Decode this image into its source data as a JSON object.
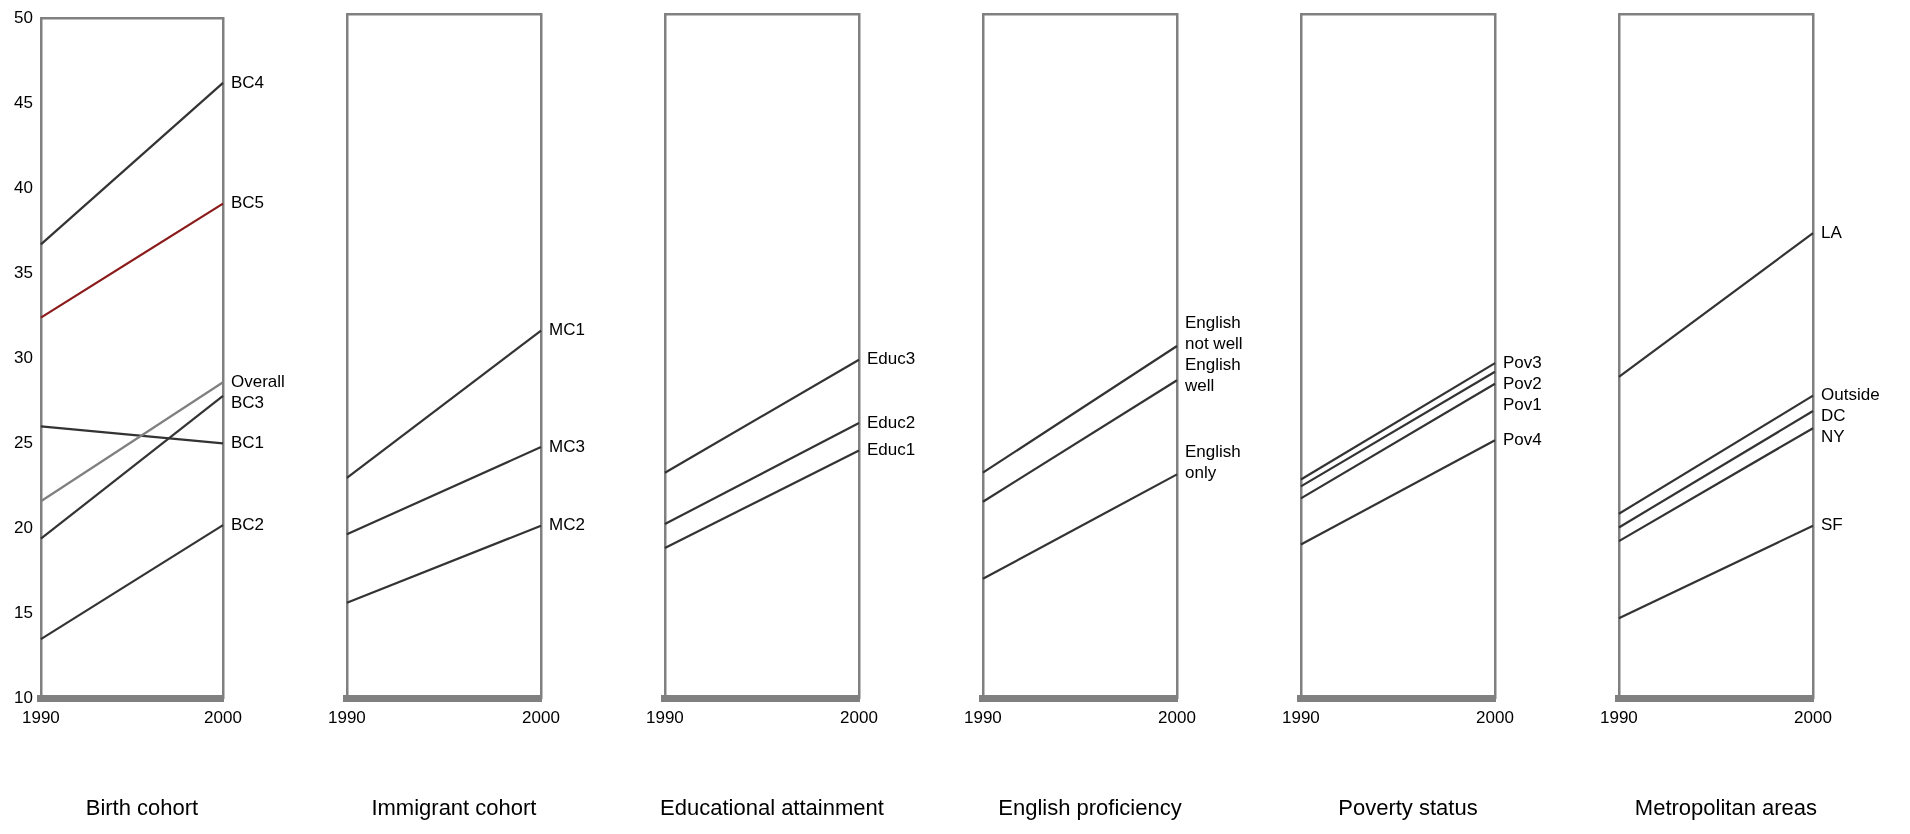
{
  "chart_data": [
    {
      "type": "line",
      "xlabel": "Birth cohort",
      "categories": [
        "1990",
        "2000"
      ],
      "ylim": [
        10,
        50
      ],
      "yticks": [
        10,
        15,
        20,
        25,
        30,
        35,
        40,
        45,
        50
      ],
      "marker": "none",
      "line_style": "solid",
      "series": [
        {
          "name": "BC4",
          "color": "#333333",
          "values": [
            36.7,
            46.2
          ]
        },
        {
          "name": "BC5",
          "color": "#8b1a1a",
          "values": [
            32.4,
            39.1
          ]
        },
        {
          "name": "Overall",
          "color": "#808080",
          "values": [
            21.6,
            28.6
          ]
        },
        {
          "name": "BC3",
          "color": "#333333",
          "values": [
            19.4,
            27.8
          ]
        },
        {
          "name": "BC1",
          "color": "#333333",
          "values": [
            26.0,
            25.0
          ]
        },
        {
          "name": "BC2",
          "color": "#333333",
          "values": [
            13.5,
            20.2
          ]
        }
      ]
    },
    {
      "type": "line",
      "xlabel": "Immigrant cohort",
      "categories": [
        "1990",
        "2000"
      ],
      "ylim": [
        10,
        50
      ],
      "tick_labels": "x",
      "marker": "none",
      "line_style": "solid",
      "series": [
        {
          "name": "MC1",
          "color": "#333333",
          "values": [
            22.9,
            31.5
          ]
        },
        {
          "name": "MC3",
          "color": "#333333",
          "values": [
            19.6,
            24.7
          ]
        },
        {
          "name": "MC2",
          "color": "#333333",
          "values": [
            15.6,
            20.1
          ]
        }
      ]
    },
    {
      "type": "line",
      "xlabel": "Educational attainment",
      "categories": [
        "1990",
        "2000"
      ],
      "ylim": [
        10,
        50
      ],
      "tick_labels": "x",
      "marker": "none",
      "line_style": "solid",
      "series": [
        {
          "name": "Educ3",
          "color": "#333333",
          "values": [
            23.2,
            29.8
          ]
        },
        {
          "name": "Educ2",
          "color": "#333333",
          "values": [
            20.2,
            26.1
          ]
        },
        {
          "name": "Educ1",
          "color": "#333333",
          "values": [
            18.8,
            24.5
          ]
        }
      ]
    },
    {
      "type": "line",
      "xlabel": "English proficiency",
      "categories": [
        "1990",
        "2000"
      ],
      "ylim": [
        10,
        50
      ],
      "tick_labels": "x",
      "marker": "none",
      "line_style": "solid",
      "series": [
        {
          "name": "English not well",
          "color": "#333333",
          "values": [
            23.2,
            30.6
          ]
        },
        {
          "name": "English well",
          "color": "#333333",
          "values": [
            21.5,
            28.6
          ]
        },
        {
          "name": "English only",
          "color": "#333333",
          "values": [
            17.0,
            23.1
          ]
        }
      ]
    },
    {
      "type": "line",
      "xlabel": "Poverty status",
      "categories": [
        "1990",
        "2000"
      ],
      "ylim": [
        10,
        50
      ],
      "tick_labels": "x",
      "marker": "none",
      "line_style": "solid",
      "series": [
        {
          "name": "Pov3",
          "color": "#333333",
          "values": [
            22.8,
            29.6
          ]
        },
        {
          "name": "Pov2",
          "color": "#333333",
          "values": [
            22.4,
            29.1
          ]
        },
        {
          "name": "Pov1",
          "color": "#333333",
          "values": [
            21.7,
            28.4
          ]
        },
        {
          "name": "Pov4",
          "color": "#333333",
          "values": [
            19.0,
            25.1
          ]
        }
      ]
    },
    {
      "type": "line",
      "xlabel": "Metropolitan areas",
      "categories": [
        "1990",
        "2000"
      ],
      "ylim": [
        10,
        50
      ],
      "tick_labels": "x",
      "marker": "none",
      "line_style": "solid",
      "series": [
        {
          "name": "LA",
          "color": "#333333",
          "values": [
            28.8,
            37.2
          ]
        },
        {
          "name": "Outside",
          "color": "#333333",
          "values": [
            20.8,
            27.7
          ]
        },
        {
          "name": "DC",
          "color": "#333333",
          "values": [
            20.0,
            26.8
          ]
        },
        {
          "name": "NY",
          "color": "#333333",
          "values": [
            19.2,
            25.8
          ]
        },
        {
          "name": "SF",
          "color": "#333333",
          "values": [
            14.7,
            20.1
          ]
        }
      ]
    }
  ]
}
